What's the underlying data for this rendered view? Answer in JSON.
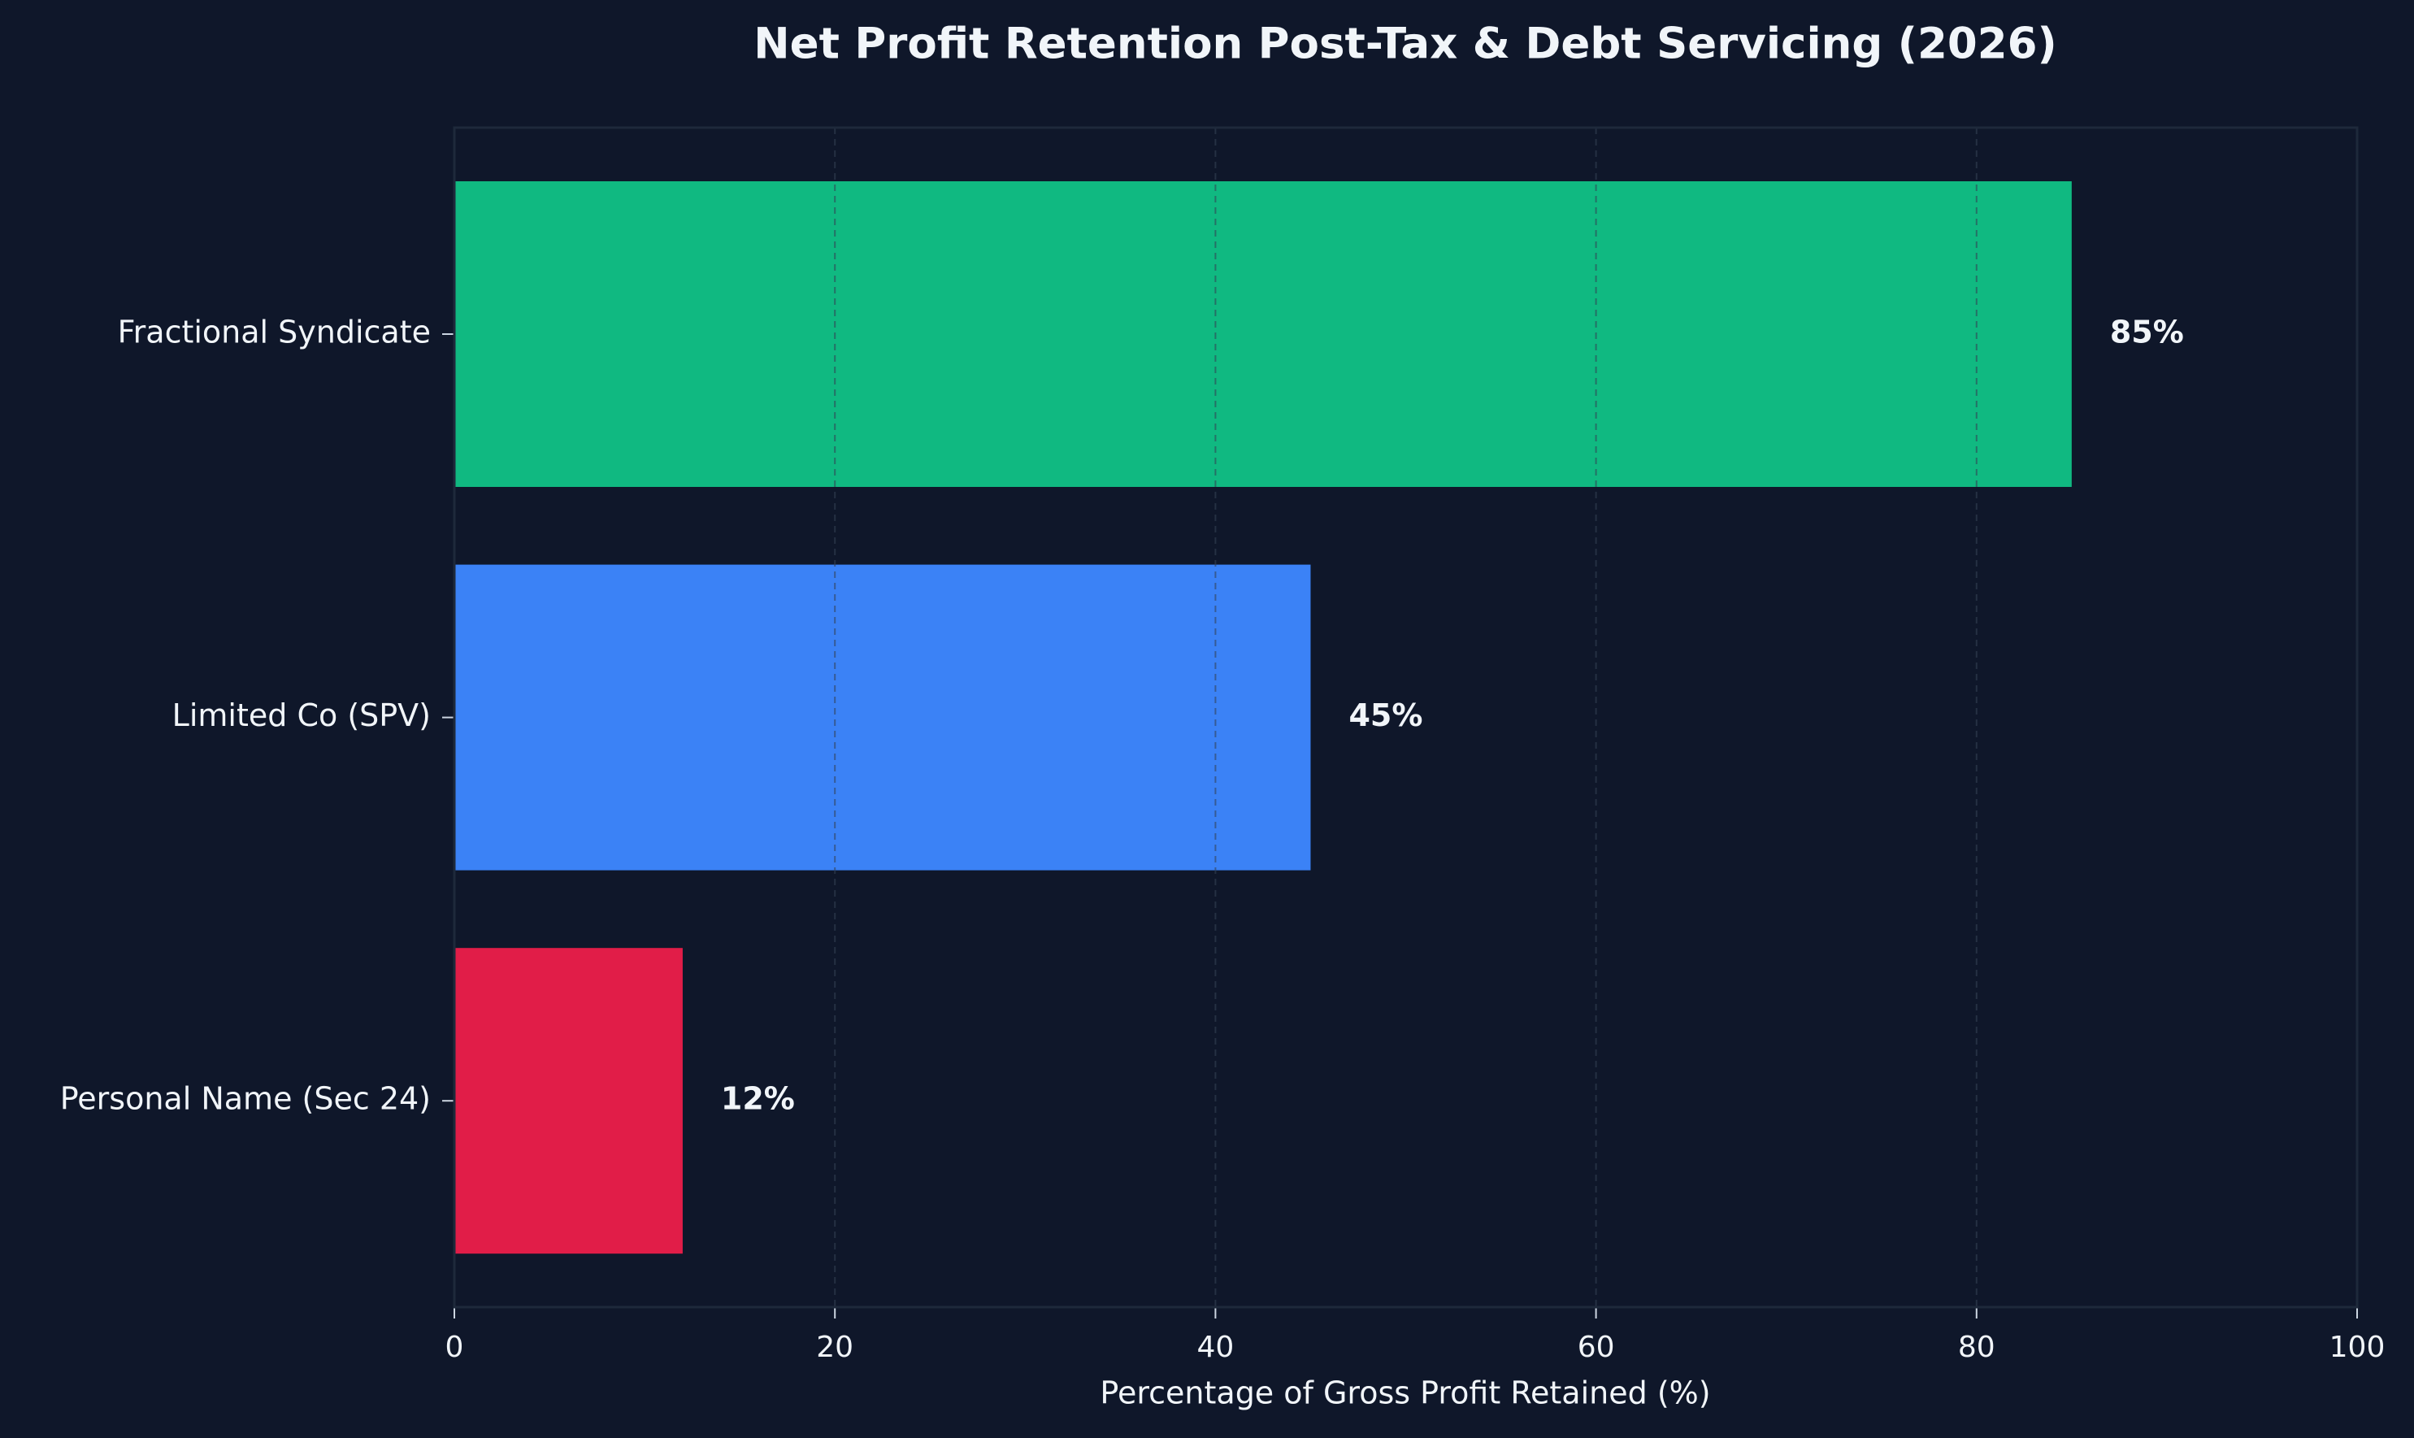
{
  "chart_data": {
    "type": "bar",
    "orientation": "horizontal",
    "title": "Net Profit Retention Post-Tax & Debt Servicing (2026)",
    "xlabel": "Percentage of Gross Profit Retained (%)",
    "categories": [
      "Fractional Syndicate",
      "Limited Co (SPV)",
      "Personal Name (Sec 24)"
    ],
    "values": [
      85,
      45,
      12
    ],
    "value_labels": [
      "85%",
      "45%",
      "12%"
    ],
    "colors": [
      "#10b981",
      "#3b82f6",
      "#e11d48"
    ],
    "xlim": [
      0,
      100
    ],
    "xticks": [
      0,
      20,
      40,
      60,
      80,
      100
    ],
    "grid": true
  }
}
